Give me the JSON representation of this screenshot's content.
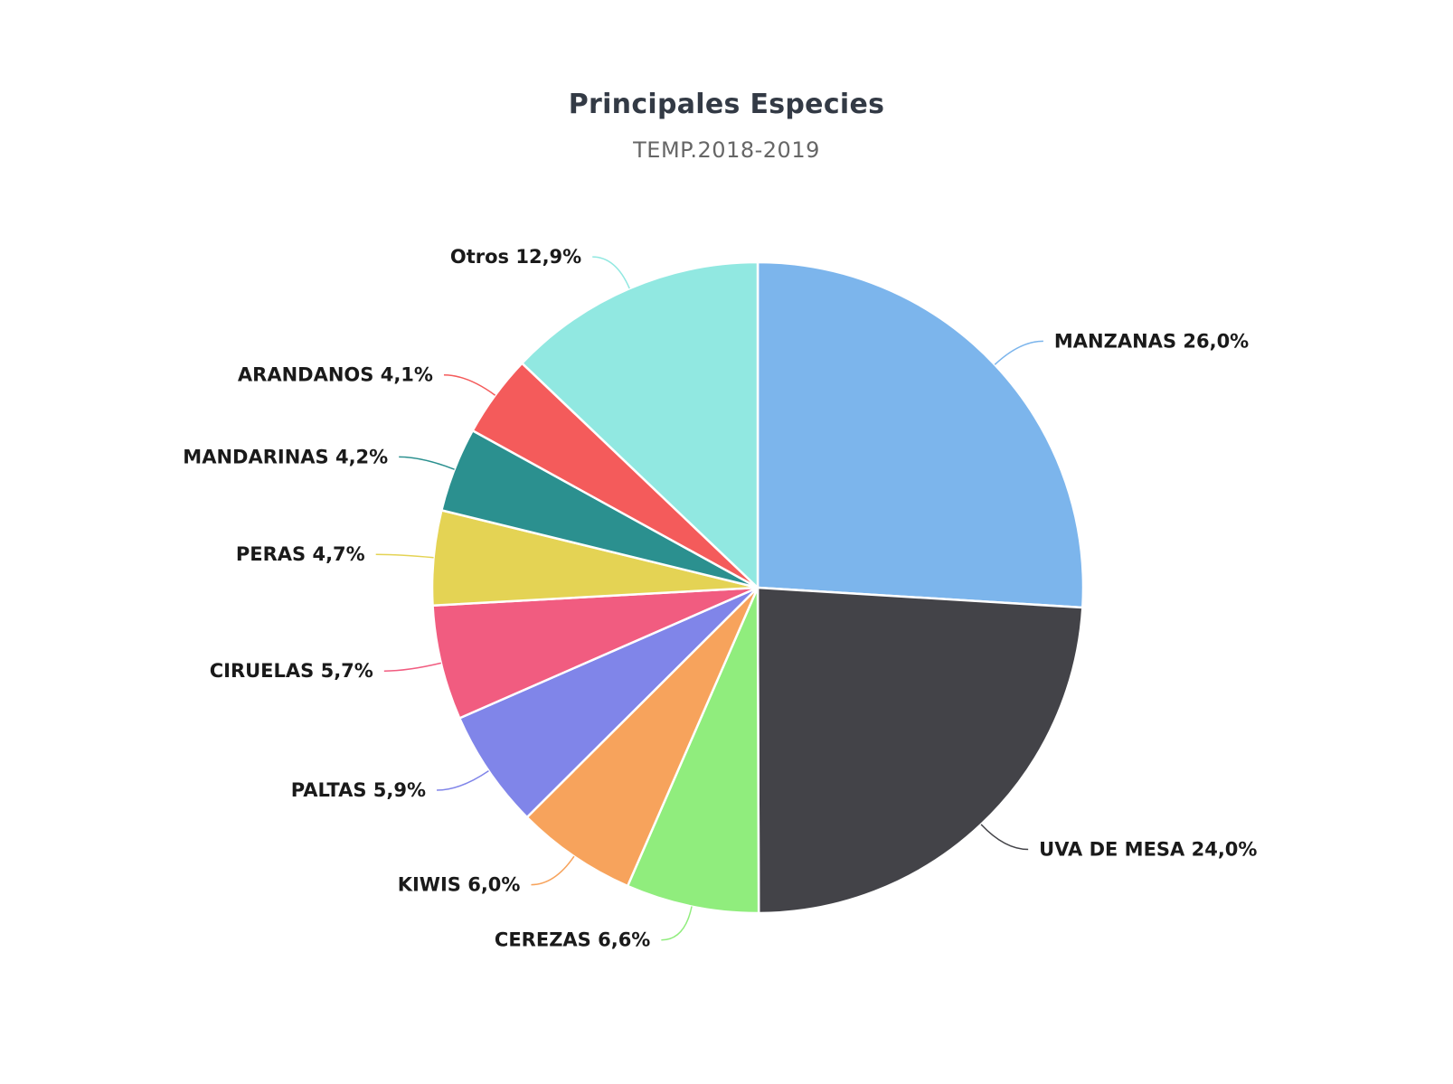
{
  "chart_data": {
    "type": "pie",
    "title": "Principales Especies",
    "subtitle": "TEMP.2018-2019",
    "slices": [
      {
        "name": "MANZANAS",
        "value": 26.0,
        "label": "MANZANAS 26,0%",
        "color": "#7cb5ec"
      },
      {
        "name": "UVA DE MESA",
        "value": 24.0,
        "label": "UVA DE MESA 24,0%",
        "color": "#434348"
      },
      {
        "name": "CEREZAS",
        "value": 6.6,
        "label": "CEREZAS 6,6%",
        "color": "#90ed7d"
      },
      {
        "name": "KIWIS",
        "value": 6.0,
        "label": "KIWIS 6,0%",
        "color": "#f7a35c"
      },
      {
        "name": "PALTAS",
        "value": 5.9,
        "label": "PALTAS 5,9%",
        "color": "#8085e9"
      },
      {
        "name": "CIRUELAS",
        "value": 5.7,
        "label": "CIRUELAS 5,7%",
        "color": "#f15c80"
      },
      {
        "name": "PERAS",
        "value": 4.7,
        "label": "PERAS 4,7%",
        "color": "#e4d354"
      },
      {
        "name": "MANDARINAS",
        "value": 4.2,
        "label": "MANDARINAS 4,2%",
        "color": "#2b908f"
      },
      {
        "name": "ARANDANOS",
        "value": 4.1,
        "label": "ARANDANOS 4,1%",
        "color": "#f45b5b"
      },
      {
        "name": "Otros",
        "value": 12.9,
        "label": "Otros 12,9%",
        "color": "#91e8e1"
      }
    ]
  }
}
